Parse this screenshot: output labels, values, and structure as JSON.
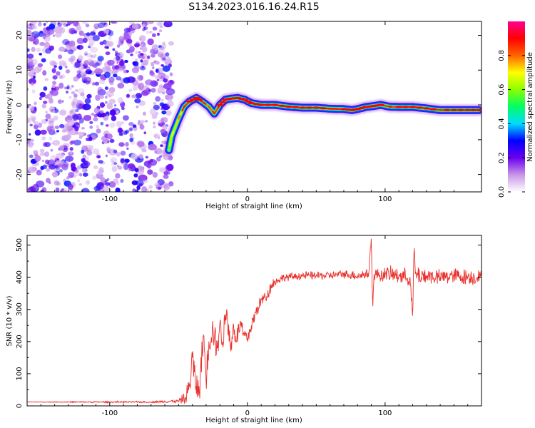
{
  "title": "S134.2023.016.16.24.R15",
  "chart_data": [
    {
      "type": "heatmap",
      "name": "spectrogram",
      "xlabel": "Height of straight line (km)",
      "ylabel": "Frequency (Hz)",
      "xlim": [
        -160,
        170
      ],
      "ylim": [
        -25,
        24
      ],
      "xticks": [
        -100,
        0,
        100
      ],
      "yticks": [
        -20,
        -10,
        0,
        10,
        20
      ],
      "grid": false,
      "noise_region": {
        "x": [
          -160,
          -55
        ],
        "y": [
          -25,
          24
        ],
        "typical_amplitude": [
          0.1,
          0.3
        ]
      },
      "ridge": {
        "x": [
          -57,
          -55,
          -50,
          -46,
          -42,
          -37,
          -33,
          -28,
          -24,
          -20,
          -16,
          -12,
          -7,
          -2,
          3,
          10,
          20,
          30,
          40,
          50,
          60,
          70,
          76,
          80,
          86,
          92,
          97,
          103,
          110,
          120,
          130,
          140,
          150,
          160,
          168
        ],
        "freq": [
          -13,
          -9,
          -4,
          -0.5,
          1,
          2,
          1,
          -0.5,
          -2.5,
          0,
          1.5,
          1.8,
          2,
          1.5,
          0.5,
          0,
          0,
          -0.5,
          -0.8,
          -0.8,
          -1.1,
          -1.2,
          -1.5,
          -1.2,
          -0.6,
          -0.3,
          0,
          -0.5,
          -0.6,
          -0.6,
          -1,
          -1.5,
          -1.5,
          -1.5,
          -1.5
        ],
        "amplitude": [
          0.4,
          0.5,
          0.6,
          0.8,
          0.85,
          0.9,
          0.8,
          0.7,
          0.8,
          0.85,
          0.95,
          0.92,
          0.9,
          0.85,
          0.9,
          0.95,
          0.9,
          0.85,
          0.85,
          0.9,
          0.8,
          0.85,
          0.9,
          0.85,
          0.9,
          0.9,
          0.85,
          0.8,
          0.85,
          0.85,
          0.9,
          0.8,
          0.9,
          0.95,
          0.9
        ]
      }
    },
    {
      "type": "colorbar",
      "name": "colorbar",
      "label": "Normalized spectral amplitude",
      "range": [
        0.0,
        1.0
      ],
      "ticks": [
        0.0,
        0.2,
        0.4,
        0.6,
        0.8
      ],
      "tick_labels": [
        "0.0",
        "0.2",
        "0.4",
        "0.6",
        "0.8"
      ],
      "colors": [
        "#ffffff",
        "#c896e8",
        "#6a00f0",
        "#0000ff",
        "#00dcff",
        "#00ff64",
        "#8cff00",
        "#ffff00",
        "#ff6400",
        "#ff0000",
        "#ff0090"
      ]
    },
    {
      "type": "line",
      "name": "snr",
      "xlabel": "Height of straight line (km)",
      "ylabel": "SNR (10 * v/v)",
      "xlim": [
        -160,
        170
      ],
      "ylim": [
        0,
        530
      ],
      "xticks": [
        -100,
        0,
        100
      ],
      "yticks": [
        0,
        100,
        200,
        300,
        400,
        500
      ],
      "color": "#e8302c",
      "series": [
        {
          "name": "SNR",
          "x": [
            -160,
            -130,
            -100,
            -70,
            -50,
            -45,
            -42,
            -40,
            -38,
            -35,
            -32,
            -30,
            -28,
            -25,
            -22,
            -20,
            -18,
            -15,
            -12,
            -10,
            -8,
            -5,
            -3,
            0,
            3,
            6,
            10,
            14,
            18,
            22,
            26,
            30,
            40,
            50,
            60,
            70,
            80,
            88,
            90,
            91,
            92,
            95,
            100,
            110,
            118,
            120,
            121,
            122,
            125,
            130,
            140,
            150,
            160,
            170
          ],
          "y": [
            12,
            12,
            12,
            12,
            15,
            25,
            60,
            150,
            80,
            40,
            220,
            90,
            200,
            240,
            180,
            260,
            200,
            300,
            170,
            250,
            200,
            260,
            220,
            210,
            250,
            290,
            330,
            340,
            380,
            390,
            400,
            400,
            405,
            405,
            405,
            410,
            405,
            410,
            520,
            310,
            410,
            405,
            410,
            405,
            400,
            280,
            490,
            410,
            405,
            405,
            400,
            405,
            400,
            400
          ],
          "noise": [
            1,
            2,
            3,
            3,
            6,
            25,
            45,
            60,
            60,
            45,
            60,
            50,
            60,
            60,
            50,
            60,
            50,
            60,
            50,
            40,
            40,
            40,
            35,
            30,
            30,
            30,
            25,
            25,
            20,
            15,
            15,
            15,
            15,
            15,
            15,
            15,
            18,
            20,
            20,
            20,
            25,
            25,
            28,
            30,
            30,
            30,
            30,
            30,
            35,
            30,
            30,
            30,
            30,
            25
          ]
        }
      ]
    }
  ]
}
